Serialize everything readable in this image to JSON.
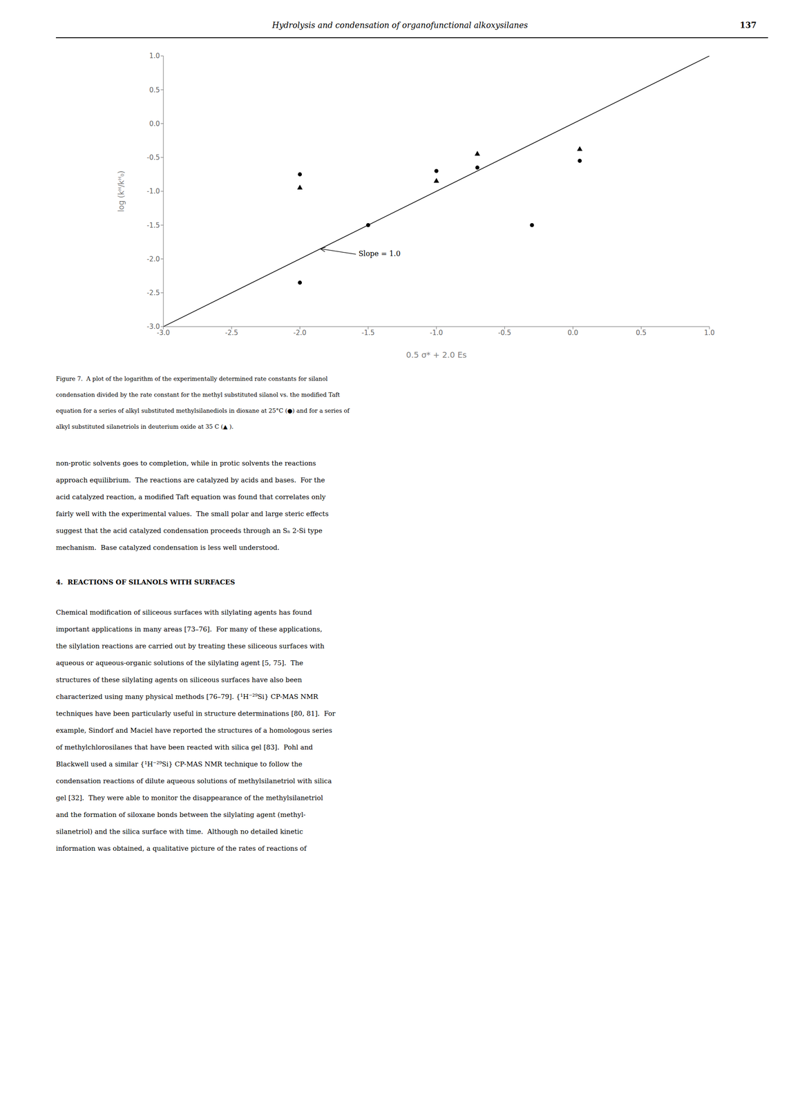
{
  "header_title": "Hydrolysis and condensation of organofunctional alkoxysilanes",
  "page_number": "137",
  "caption_lines": [
    "Figure 7.  A plot of the logarithm of the experimentally determined rate constants for silanol",
    "condensation divided by the rate constant for the methyl substituted silanol vs. the modified Taft",
    "equation for a series of alkyl substituted methylsilanediols in dioxane at 25°C (●) and for a series of",
    "alkyl substituted silanetriols in deuterium oxide at 35 C (▲ )."
  ],
  "paragraph1_lines": [
    "non-protic solvents goes to completion, while in protic solvents the reactions",
    "approach equilibrium.  The reactions are catalyzed by acids and bases.  For the",
    "acid catalyzed reaction, a modified Taft equation was found that correlates only",
    "fairly well with the experimental values.  The small polar and large steric effects",
    "suggest that the acid catalyzed condensation proceeds through an Sₙ 2-Si type",
    "mechanism.  Base catalyzed condensation is less well understood."
  ],
  "section_heading": "4.  REACTIONS OF SILANOLS WITH SURFACES",
  "paragraph2_lines": [
    "Chemical modification of siliceous surfaces with silylating agents has found",
    "important applications in many areas [73–76].  For many of these applications,",
    "the silylation reactions are carried out by treating these siliceous surfaces with",
    "aqueous or aqueous-organic solutions of the silylating agent [5, 75].  The",
    "structures of these silylating agents on siliceous surfaces have also been",
    "characterized using many physical methods [76–79]. {¹H⁻²⁹Si} CP-MAS NMR",
    "techniques have been particularly useful in structure determinations [80, 81].  For",
    "example, Sindorf and Maciel have reported the structures of a homologous series",
    "of methylchlorosilanes that have been reacted with silica gel [83].  Pohl and",
    "Blackwell used a similar {¹H⁻²⁹Si} CP-MAS NMR technique to follow the",
    "condensation reactions of dilute aqueous solutions of methylsilanetriol with silica",
    "gel [32].  They were able to monitor the disappearance of the methylsilanetriol",
    "and the formation of siloxane bonds between the silylating agent (methyl-",
    "silanetriol) and the silica surface with time.  Although no detailed kinetic",
    "information was obtained, a qualitative picture of the rates of reactions of"
  ],
  "chart_data": {
    "type": "scatter",
    "xlabel": "0.5 σ* + 2.0 Es",
    "ylabel": "log (kᴴ/kᴴ₀)",
    "xlim": [
      -3.0,
      1.0
    ],
    "ylim": [
      -3.0,
      1.0
    ],
    "xticks": [
      {
        "value": -3.0,
        "label": "-3.0"
      },
      -2.5,
      {
        "value": -2.0,
        "label": "-2.0"
      },
      -1.5,
      {
        "value": -1.0,
        "label": "-1.0"
      },
      -0.5,
      {
        "value": 0.0,
        "label": "0.0"
      },
      0.5,
      {
        "value": 1.0,
        "label": "1.0"
      }
    ],
    "yticks": [
      {
        "value": -3.0,
        "label": "-3.0"
      },
      -2.5,
      {
        "value": -2.0,
        "label": "-2.0"
      },
      -1.5,
      {
        "value": -1.0,
        "label": "-1.0"
      },
      -0.5,
      {
        "value": 0.0,
        "label": "0.0"
      },
      0.5,
      {
        "value": 1.0,
        "label": "1.0"
      }
    ],
    "grid": false,
    "series": [
      {
        "type": "line",
        "color": "#000000",
        "x": [
          -3.0,
          1.0
        ],
        "values": [
          -3.0,
          1.0
        ]
      },
      {
        "type": "scatter",
        "marker": "circle",
        "color": "#000000",
        "x": [
          -2.0,
          -2.0,
          -1.5,
          -1.0,
          -0.7,
          0.05,
          -0.3
        ],
        "values": [
          -2.35,
          -0.75,
          -1.5,
          -0.7,
          -0.65,
          -0.55,
          -1.5
        ]
      },
      {
        "type": "scatter",
        "marker": "triangle",
        "color": "#000000",
        "x": [
          -2.0,
          -1.0,
          -0.7,
          0.05
        ],
        "values": [
          -0.95,
          -0.85,
          -0.45,
          -0.38
        ]
      }
    ],
    "annotations": [
      {
        "text": "Slope = 1.0",
        "x": -1.85,
        "y": -1.85,
        "text_x": -1.58,
        "text_y": -1.93
      }
    ]
  }
}
